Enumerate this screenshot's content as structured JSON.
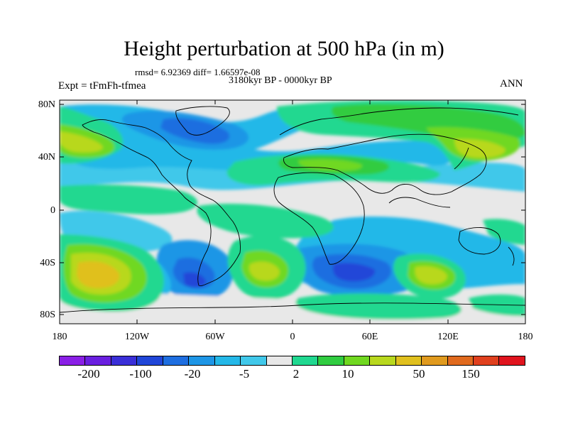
{
  "title": "Height perturbation at 500 hPa (in m)",
  "stats": "rmsd= 6.92369 diff= 1.66597e-08",
  "period": "3180kyr BP - 0000kyr BP",
  "experiment": "Expt = tFmFh-tfmea",
  "season": "ANN",
  "lat_labels": [
    "80N",
    "40N",
    "0",
    "40S",
    "80S"
  ],
  "lon_labels": [
    "180",
    "120W",
    "60W",
    "0",
    "60E",
    "120E",
    "180"
  ],
  "colorbar": {
    "colors": [
      "#8a1fe6",
      "#6a1fe0",
      "#3a2fd8",
      "#2046d8",
      "#1e6ee0",
      "#1e96e6",
      "#24b8e8",
      "#40c8ea",
      "#e8e8e8",
      "#20d890",
      "#30cc40",
      "#70d820",
      "#b8d81e",
      "#e0c01e",
      "#e09a1e",
      "#e06a1e",
      "#e0401e",
      "#e0141e"
    ],
    "labels": [
      "-200",
      "-100",
      "-20",
      "-5",
      "2",
      "10",
      "50",
      "150"
    ]
  }
}
